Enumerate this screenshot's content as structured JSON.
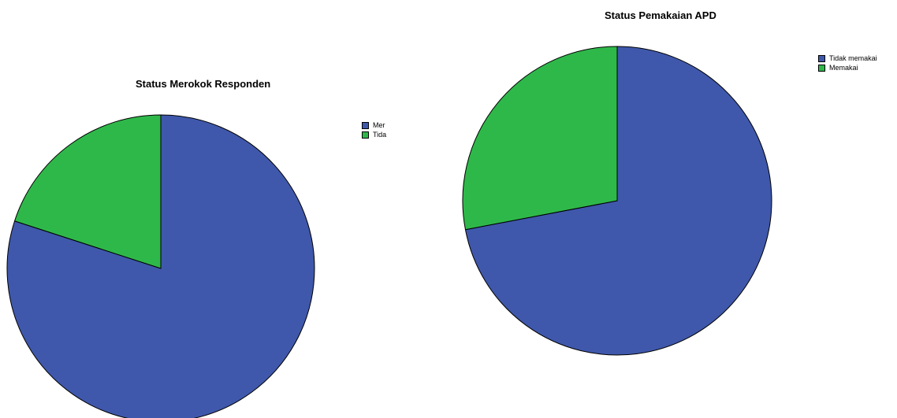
{
  "colors": {
    "blue": "#3f58ab",
    "green": "#2fb84a"
  },
  "chart_data": [
    {
      "type": "pie",
      "title": "Status Merokok Responden",
      "categories": [
        "Merokok",
        "Tidak merokok"
      ],
      "values": [
        80,
        20
      ],
      "colors": [
        "#3f58ab",
        "#2fb84a"
      ],
      "legend": {
        "position": "right",
        "labels": [
          "Mer",
          "Tida"
        ]
      }
    },
    {
      "type": "pie",
      "title": "Status Pemakaian APD",
      "categories": [
        "Tidak memakai",
        "Memakai"
      ],
      "values": [
        72,
        28
      ],
      "colors": [
        "#3f58ab",
        "#2fb84a"
      ],
      "legend": {
        "position": "top-right",
        "labels": [
          "Tidak memakai",
          "Memakai"
        ]
      }
    }
  ]
}
